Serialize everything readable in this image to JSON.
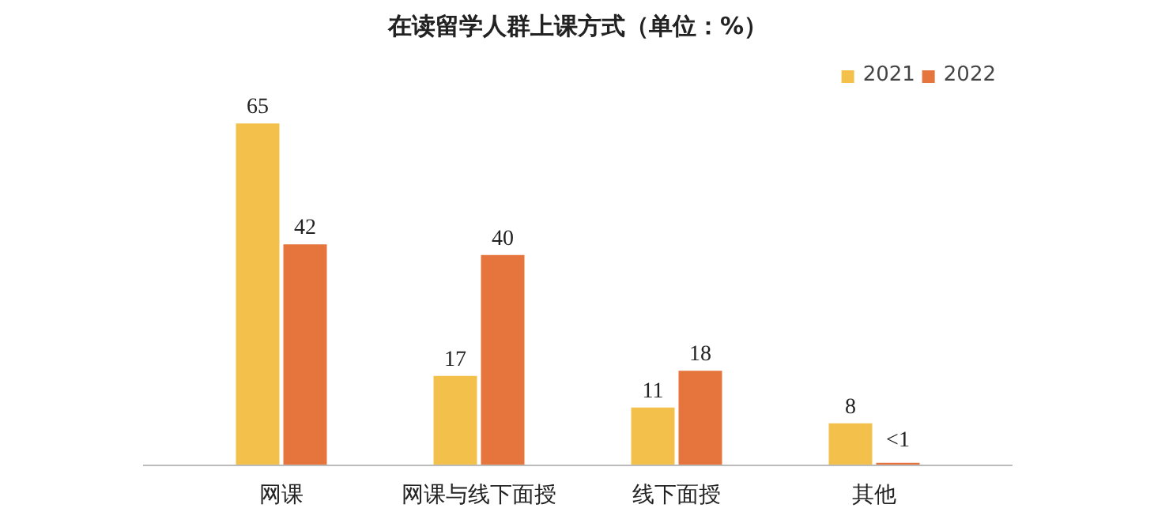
{
  "chart_data": {
    "type": "bar",
    "title": "在读留学人群上课方式（单位：%）",
    "categories": [
      "网课",
      "网课与线下面授",
      "线下面授",
      "其他"
    ],
    "series": [
      {
        "name": "2021",
        "color": "#f3c14b",
        "values": [
          65,
          17,
          11,
          8
        ],
        "value_labels": [
          "65",
          "17",
          "11",
          "8"
        ]
      },
      {
        "name": "2022",
        "color": "#e5743d",
        "values": [
          42,
          40,
          18,
          0.5
        ],
        "value_labels": [
          "42",
          "40",
          "18",
          "<1"
        ]
      }
    ],
    "legend": "top right",
    "grid": false
  }
}
